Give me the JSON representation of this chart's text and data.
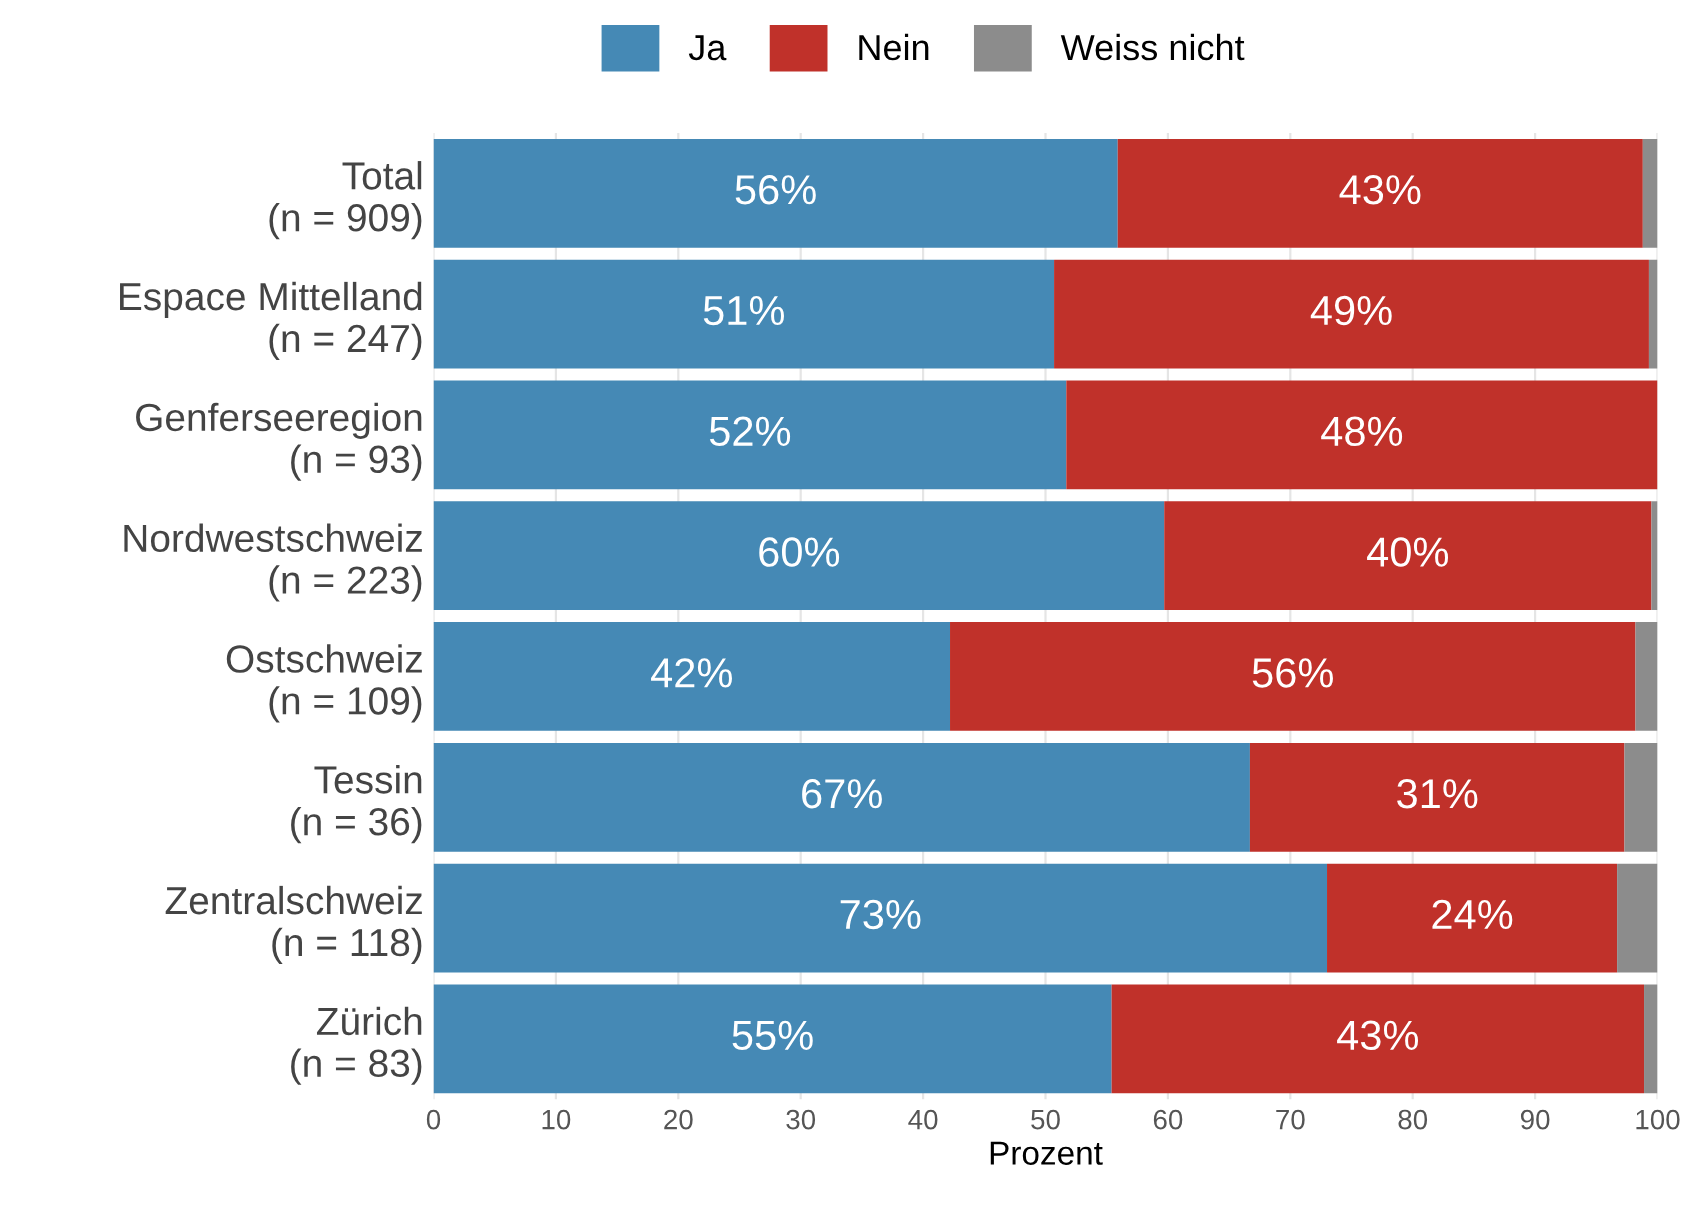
{
  "chart_data": {
    "type": "bar",
    "orientation": "horizontal",
    "stacked": true,
    "categories": [
      "Total\n(n = 909)",
      "Espace Mittelland\n(n = 247)",
      "Genferseeregion\n(n = 93)",
      "Nordwestschweiz\n(n = 223)",
      "Ostschweiz\n(n = 109)",
      "Tessin\n(n = 36)",
      "Zentralschweiz\n(n = 118)",
      "Zürich\n(n = 83)"
    ],
    "series": [
      {
        "name": "Ja",
        "color": "#4589b5",
        "values": [
          55.9,
          50.7,
          51.7,
          59.7,
          42.2,
          66.7,
          73.0,
          55.4
        ],
        "value_labels": [
          "56%",
          "51%",
          "52%",
          "60%",
          "42%",
          "67%",
          "73%",
          "55%"
        ]
      },
      {
        "name": "Nein",
        "color": "#c0312a",
        "values": [
          42.9,
          48.6,
          48.3,
          39.8,
          56.0,
          30.6,
          23.7,
          43.5
        ],
        "value_labels": [
          "43%",
          "49%",
          "48%",
          "40%",
          "56%",
          "31%",
          "24%",
          "43%"
        ]
      },
      {
        "name": "Weiss nicht",
        "color": "#8c8c8c",
        "values": [
          1.2,
          0.7,
          0.0,
          0.5,
          1.8,
          2.7,
          3.3,
          1.1
        ]
      }
    ],
    "xlabel": "Prozent",
    "xlim": [
      0,
      100
    ],
    "xticks": [
      0,
      10,
      20,
      30,
      40,
      50,
      60,
      70,
      80,
      90,
      100
    ],
    "grid": "x",
    "legend": "top"
  }
}
